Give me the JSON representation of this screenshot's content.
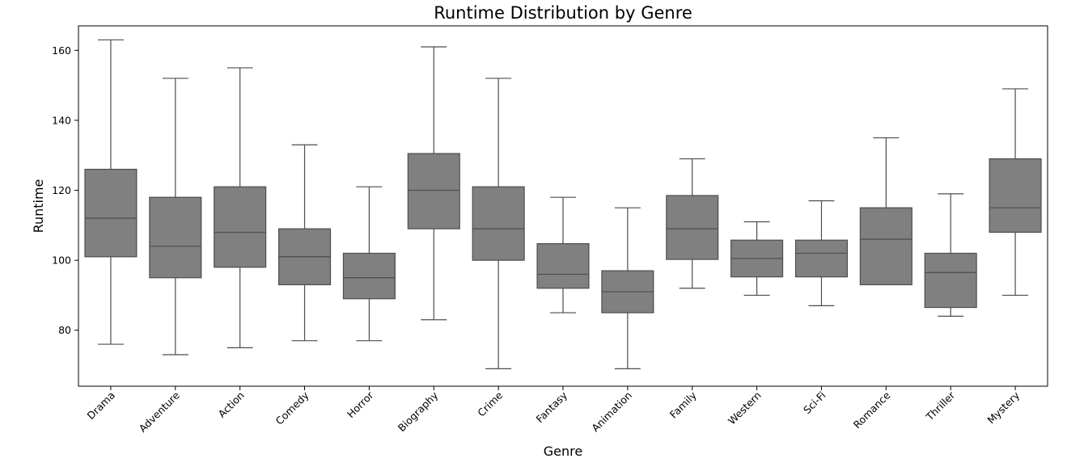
{
  "chart_data": {
    "type": "box",
    "title": "Runtime Distribution by Genre",
    "xlabel": "Genre",
    "ylabel": "Runtime",
    "ylim": [
      64,
      167
    ],
    "yticks": [
      80,
      100,
      120,
      140,
      160
    ],
    "grid": false,
    "box_color": "#808080",
    "line_color": "#4d4d4d",
    "categories": [
      "Drama",
      "Adventure",
      "Action",
      "Comedy",
      "Horror",
      "Biography",
      "Crime",
      "Fantasy",
      "Animation",
      "Family",
      "Western",
      "Sci-Fi",
      "Romance",
      "Thriller",
      "Mystery"
    ],
    "boxes": [
      {
        "min": 76,
        "q1": 101,
        "median": 112,
        "q3": 126,
        "max": 163
      },
      {
        "min": 73,
        "q1": 95,
        "median": 104,
        "q3": 118,
        "max": 152
      },
      {
        "min": 75,
        "q1": 98,
        "median": 108,
        "q3": 121,
        "max": 155
      },
      {
        "min": 77,
        "q1": 93,
        "median": 101,
        "q3": 109,
        "max": 133
      },
      {
        "min": 77,
        "q1": 89,
        "median": 95,
        "q3": 102,
        "max": 121
      },
      {
        "min": 83,
        "q1": 109,
        "median": 120,
        "q3": 130.5,
        "max": 161
      },
      {
        "min": 69,
        "q1": 100,
        "median": 109,
        "q3": 121,
        "max": 152
      },
      {
        "min": 85,
        "q1": 92,
        "median": 96,
        "q3": 104.75,
        "max": 118
      },
      {
        "min": 69,
        "q1": 85,
        "median": 91,
        "q3": 97,
        "max": 115
      },
      {
        "min": 92,
        "q1": 100.25,
        "median": 109,
        "q3": 118.5,
        "max": 129
      },
      {
        "min": 90,
        "q1": 95.25,
        "median": 100.5,
        "q3": 105.75,
        "max": 111
      },
      {
        "min": 87,
        "q1": 95.25,
        "median": 102,
        "q3": 105.75,
        "max": 117
      },
      {
        "min": 93,
        "q1": 93,
        "median": 106,
        "q3": 115,
        "max": 135
      },
      {
        "min": 84,
        "q1": 86.5,
        "median": 96.5,
        "q3": 102,
        "max": 119
      },
      {
        "min": 90,
        "q1": 108,
        "median": 115,
        "q3": 129,
        "max": 149
      }
    ]
  }
}
